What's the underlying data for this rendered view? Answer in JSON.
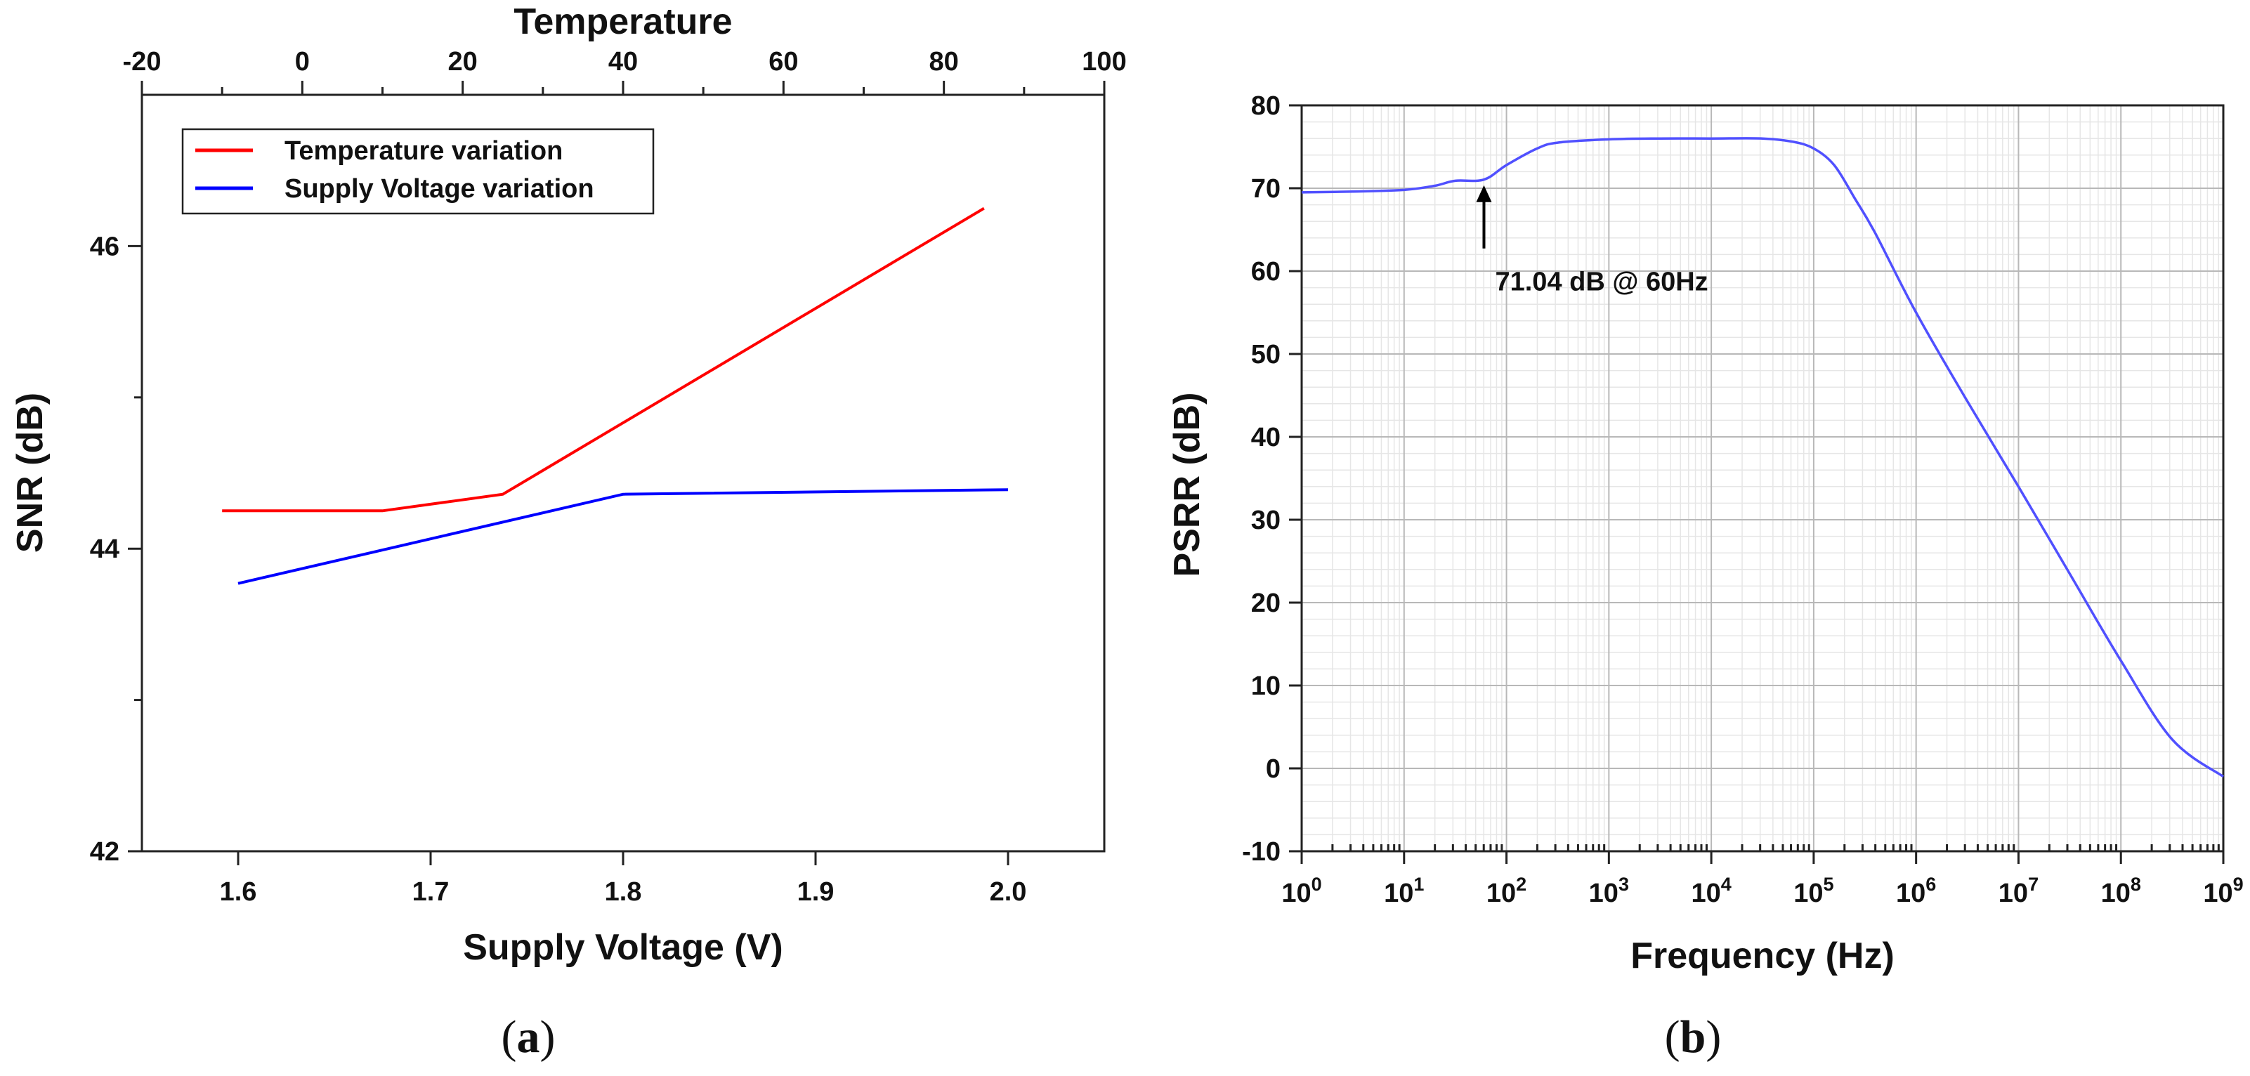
{
  "chart_data": [
    {
      "panel": "a",
      "type": "line",
      "caption": "a",
      "xlabel": "Supply Voltage (V)",
      "top_xlabel": "Temperature",
      "ylabel": "SNR (dB)",
      "xlim": [
        1.55,
        2.05
      ],
      "ylim": [
        42,
        47
      ],
      "top_xlim": [
        -20,
        100
      ],
      "x_ticks": [
        "1.6",
        "1.7",
        "1.8",
        "1.9",
        "2.0"
      ],
      "y_ticks": [
        "42",
        "44",
        "46"
      ],
      "top_x_ticks": [
        "-20",
        "0",
        "20",
        "40",
        "60",
        "80",
        "100"
      ],
      "legend_position": "top-left",
      "series": [
        {
          "name": "Temperature variation",
          "color": "#ff0000",
          "axis": "top",
          "x": [
            -10,
            10,
            25,
            85
          ],
          "y": [
            44.25,
            44.25,
            44.36,
            46.25
          ]
        },
        {
          "name": "Supply Voltage variation",
          "color": "#0000ff",
          "axis": "bottom",
          "x": [
            1.6,
            1.8,
            2.0
          ],
          "y": [
            43.77,
            44.36,
            44.39
          ]
        }
      ]
    },
    {
      "panel": "b",
      "type": "line",
      "caption": "b",
      "xlabel": "Frequency (Hz)",
      "ylabel": "PSRR (dB)",
      "xscale": "log",
      "xlim_exp": [
        0,
        9
      ],
      "ylim": [
        -10,
        80
      ],
      "y_ticks": [
        "-10",
        "0",
        "10",
        "20",
        "30",
        "40",
        "50",
        "60",
        "70",
        "80"
      ],
      "x_tick_base": "10",
      "x_tick_exps": [
        "0",
        "1",
        "2",
        "3",
        "4",
        "5",
        "6",
        "7",
        "8",
        "9"
      ],
      "grid": true,
      "annotation": {
        "text": "71.04 dB @ 60Hz",
        "x_exp": 1.78,
        "y": 71.04
      },
      "series": [
        {
          "name": "PSRR",
          "color": "#5050ff",
          "x_exp": [
            0,
            0.5,
            1,
            1.3,
            1.5,
            1.78,
            2,
            2.3,
            2.5,
            3,
            3.5,
            4,
            4.5,
            4.8,
            5,
            5.2,
            5.4,
            5.6,
            6,
            6.5,
            7,
            7.5,
            8,
            8.5,
            9
          ],
          "y": [
            69.5,
            69.6,
            69.8,
            70.3,
            70.9,
            71.04,
            72.8,
            74.8,
            75.5,
            75.9,
            76.0,
            76.0,
            76.0,
            75.6,
            74.8,
            72.8,
            68.8,
            64.6,
            55.0,
            44.3,
            34.0,
            23.5,
            13.0,
            3.5,
            -1.0
          ]
        }
      ]
    }
  ]
}
